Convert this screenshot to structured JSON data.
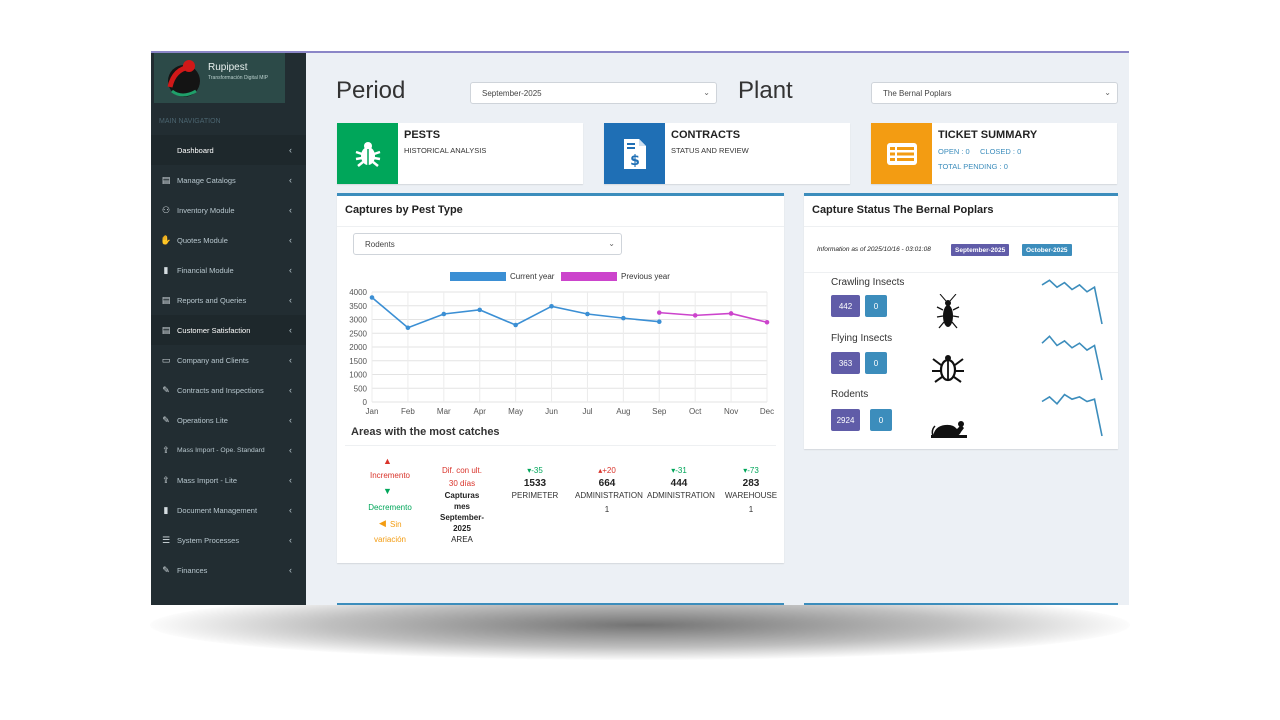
{
  "app": {
    "logo_title": "Rupipest",
    "logo_subtitle": "Transformación Digital MIP"
  },
  "sidebar": {
    "header": "MAIN NAVIGATION",
    "items": [
      {
        "label": "Dashboard",
        "icon": "none"
      },
      {
        "label": "Manage Catalogs",
        "icon": "list-icon"
      },
      {
        "label": "Inventory Module",
        "icon": "users-icon"
      },
      {
        "label": "Quotes Module",
        "icon": "handshake-icon"
      },
      {
        "label": "Financial Module",
        "icon": "file-icon"
      },
      {
        "label": "Reports and Queries",
        "icon": "list-icon"
      },
      {
        "label": "Customer Satisfaction",
        "icon": "list-icon"
      },
      {
        "label": "Company and Clients",
        "icon": "laptop-icon"
      },
      {
        "label": "Contracts and Inspections",
        "icon": "edit-icon"
      },
      {
        "label": "Operations Lite",
        "icon": "edit-icon"
      },
      {
        "label": "Mass Import - Ope. Standard",
        "icon": "upload-icon"
      },
      {
        "label": "Mass Import - Lite",
        "icon": "upload-icon"
      },
      {
        "label": "Document Management",
        "icon": "file-icon"
      },
      {
        "label": "System Processes",
        "icon": "bars-icon"
      },
      {
        "label": "Finances",
        "icon": "edit-icon"
      }
    ]
  },
  "filters": {
    "period_label": "Period",
    "period_value": "September-2025",
    "plant_label": "Plant",
    "plant_value": "The Bernal Poplars"
  },
  "info_boxes": {
    "pests": {
      "title": "PESTS",
      "subtitle": "HISTORICAL ANALYSIS",
      "color": "#00a65a",
      "icon": "bug-icon"
    },
    "contracts": {
      "title": "CONTRACTS",
      "subtitle": "STATUS AND REVIEW",
      "color": "#1f6fb5",
      "icon": "invoice-icon"
    },
    "tickets": {
      "title": "TICKET SUMMARY",
      "open": "OPEN : 0",
      "closed": "CLOSED : 0",
      "pending": "TOTAL PENDING : 0",
      "color": "#f39c12",
      "icon": "ticket-icon"
    }
  },
  "captures": {
    "title": "Captures by Pest Type",
    "select_value": "Rodents",
    "legend_current": "Current year",
    "legend_previous": "Previous year",
    "areas_title": "Areas with the most catches",
    "key": {
      "increase": "Incremento",
      "decrease": "Decremento",
      "no_change_1": "Sin",
      "no_change_2": "variación"
    },
    "diff_header": {
      "line1": "Dif. con ult.",
      "line2": "30 días",
      "line3": "Capturas",
      "line4": "mes",
      "line5": "September-",
      "line6": "2025",
      "line7": "AREA"
    },
    "areas": [
      {
        "change": "-35",
        "direction": "down",
        "count": "1533",
        "name": "PERIMETER",
        "sub": ""
      },
      {
        "change": "+20",
        "direction": "up",
        "count": "664",
        "name": "ADMINISTRATION",
        "sub": "1"
      },
      {
        "change": "-31",
        "direction": "down",
        "count": "444",
        "name": "ADMINISTRATION",
        "sub": ""
      },
      {
        "change": "-73",
        "direction": "down",
        "count": "283",
        "name": "WAREHOUSE",
        "sub": "1"
      }
    ]
  },
  "chart_data": {
    "type": "line",
    "title": "",
    "xlabel": "",
    "ylabel": "",
    "categories": [
      "Jan",
      "Feb",
      "Mar",
      "Apr",
      "May",
      "Jun",
      "Jul",
      "Aug",
      "Sep",
      "Oct",
      "Nov",
      "Dec"
    ],
    "ylim": [
      0,
      4000
    ],
    "yticks": [
      0,
      500,
      1000,
      1500,
      2000,
      2500,
      3000,
      3500,
      4000
    ],
    "grid": true,
    "legend": "top",
    "series": [
      {
        "name": "Current year",
        "color": "#3b8fd4",
        "values": [
          3800,
          2700,
          3200,
          3350,
          2800,
          3480,
          3200,
          3050,
          2920,
          null,
          null,
          null
        ]
      },
      {
        "name": "Previous year",
        "color": "#cc44cc",
        "values": [
          null,
          null,
          null,
          null,
          null,
          null,
          null,
          null,
          3250,
          3150,
          3220,
          2900
        ]
      }
    ]
  },
  "status": {
    "title": "Capture Status The Bernal Poplars",
    "info_text": "Information as of 2025/10/16 - 03:01:08",
    "badge_current": "September-2025",
    "badge_next": "October-2025",
    "categories": [
      {
        "name": "Crawling Insects",
        "count": "442",
        "pending": "0",
        "icon": "cockroach-icon",
        "trend": [
          0.15,
          0.05,
          0.2,
          0.1,
          0.25,
          0.15,
          0.3,
          0.2,
          1.0
        ]
      },
      {
        "name": "Flying Insects",
        "count": "363",
        "pending": "0",
        "icon": "beetle-icon",
        "trend": [
          0.2,
          0.05,
          0.25,
          0.15,
          0.3,
          0.2,
          0.35,
          0.25,
          1.0
        ]
      },
      {
        "name": "Rodents",
        "count": "2924",
        "pending": "0",
        "icon": "rat-icon",
        "trend": [
          0.25,
          0.15,
          0.3,
          0.1,
          0.2,
          0.15,
          0.25,
          0.2,
          1.0
        ]
      }
    ]
  }
}
